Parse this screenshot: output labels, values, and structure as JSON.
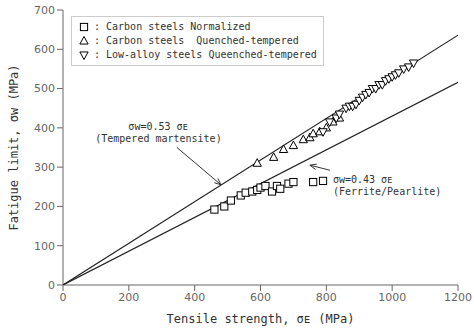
{
  "chart_data": {
    "type": "scatter",
    "xlabel": "Tensile strength, σᴇ  (MPa)",
    "ylabel": "Fatigue limit, σᴡ  (MPa)",
    "xlim": [
      0,
      1200
    ],
    "ylim": [
      0,
      700
    ],
    "xticks": [
      0,
      200,
      400,
      600,
      800,
      1000,
      1200
    ],
    "yticks": [
      0,
      100,
      200,
      300,
      400,
      500,
      600,
      700
    ],
    "grid": false,
    "legend": "upper left",
    "series": [
      {
        "type": "line",
        "color": "#222222",
        "line_style": "solid",
        "x": [
          0,
          1200
        ],
        "values": [
          0,
          636
        ]
      },
      {
        "type": "line",
        "color": "#222222",
        "line_style": "solid",
        "x": [
          0,
          1200
        ],
        "values": [
          0,
          516
        ]
      },
      {
        "type": "scatter",
        "name": ": Carbon steels Normalized",
        "marker": "square",
        "color": "black",
        "x": [
          460,
          490,
          510,
          540,
          555,
          575,
          590,
          600,
          615,
          635,
          650,
          660,
          685,
          700,
          760,
          790
        ],
        "values": [
          192,
          200,
          215,
          228,
          235,
          238,
          242,
          248,
          252,
          238,
          252,
          245,
          258,
          262,
          262,
          265
        ]
      },
      {
        "type": "scatter",
        "name": ": Carbon steels  Quenched-tempered",
        "marker": "triangle-up",
        "color": "black",
        "x": [
          590,
          640,
          670,
          700,
          730,
          750,
          760,
          780,
          800,
          820,
          840
        ],
        "values": [
          310,
          325,
          345,
          355,
          370,
          375,
          385,
          390,
          400,
          415,
          425
        ]
      },
      {
        "type": "scatter",
        "name": ": Low-alloy steels Queenched-tempered",
        "marker": "triangle-down",
        "color": "black",
        "x": [
          790,
          810,
          830,
          840,
          860,
          870,
          880,
          890,
          900,
          910,
          920,
          930,
          940,
          950,
          960,
          970,
          980,
          990,
          1000,
          1010,
          1020,
          1035,
          1050,
          1065
        ],
        "values": [
          390,
          415,
          425,
          435,
          450,
          455,
          455,
          460,
          470,
          478,
          485,
          490,
          500,
          500,
          510,
          510,
          520,
          525,
          530,
          535,
          540,
          550,
          555,
          565
        ]
      }
    ],
    "annotations": [
      {
        "text": "σᴡ=0.53 σᴇ\n(Tempered martensite)",
        "x": 290,
        "y": 390,
        "arrow_x": 480,
        "arrow_y": 255
      },
      {
        "text": "σᴡ=0.43 σᴇ\n(Ferrite/Pearlite)",
        "x": 820,
        "y": 255,
        "arrow_x": 750,
        "arrow_y": 305
      }
    ]
  }
}
